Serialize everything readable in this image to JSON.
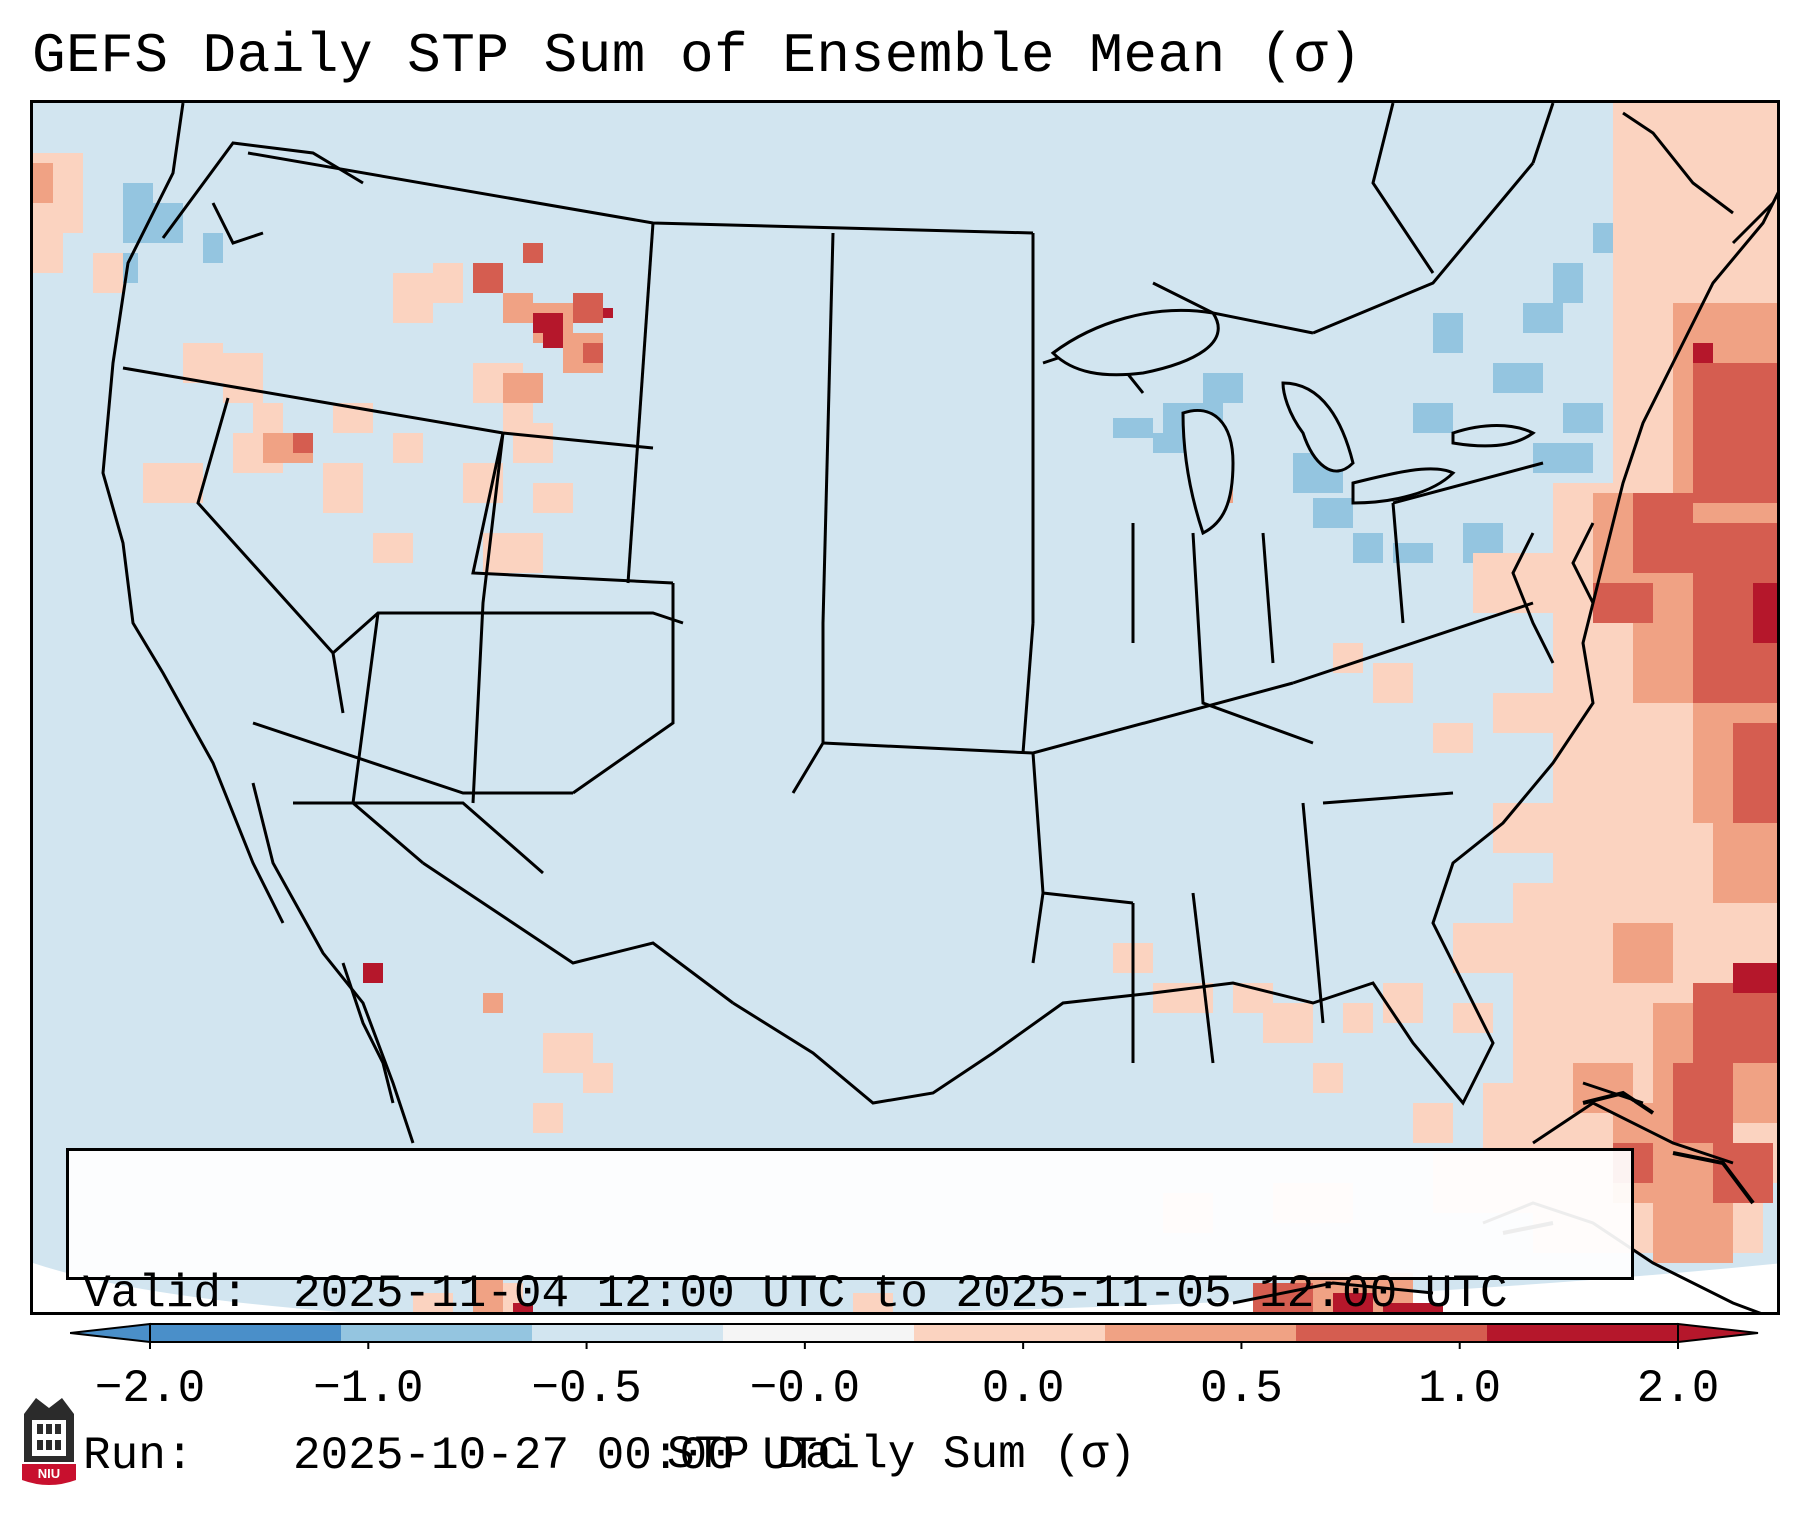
{
  "title": "GEFS Daily STP Sum of Ensemble Mean (σ)",
  "info": {
    "valid_key": "Valid:",
    "valid_value": "2025-11-04 12:00 UTC to 2025-11-05 12:00 UTC",
    "run_key": "Run:",
    "run_value": "2025-10-27 00:00 UTC"
  },
  "colorbar": {
    "label": "STP Daily Sum (σ)",
    "ticks": [
      "−2.0",
      "−1.0",
      "−0.5",
      "−0.0",
      "0.0",
      "0.5",
      "1.0",
      "2.0"
    ],
    "colors": [
      "#4a8fc9",
      "#94c5e0",
      "#d2e5f0",
      "#f5f5f5",
      "#fbd3c0",
      "#f0a284",
      "#d55d50",
      "#b5172b"
    ],
    "extend": "both"
  },
  "map": {
    "background_color": "#d2e5f0",
    "region": "Contiguous United States, southern Canada, northern Mexico, Gulf of Mexico, western Atlantic",
    "features": [
      "state borders",
      "coastlines",
      "Great Lakes",
      "country borders"
    ]
  },
  "logo_text": "NIU"
}
